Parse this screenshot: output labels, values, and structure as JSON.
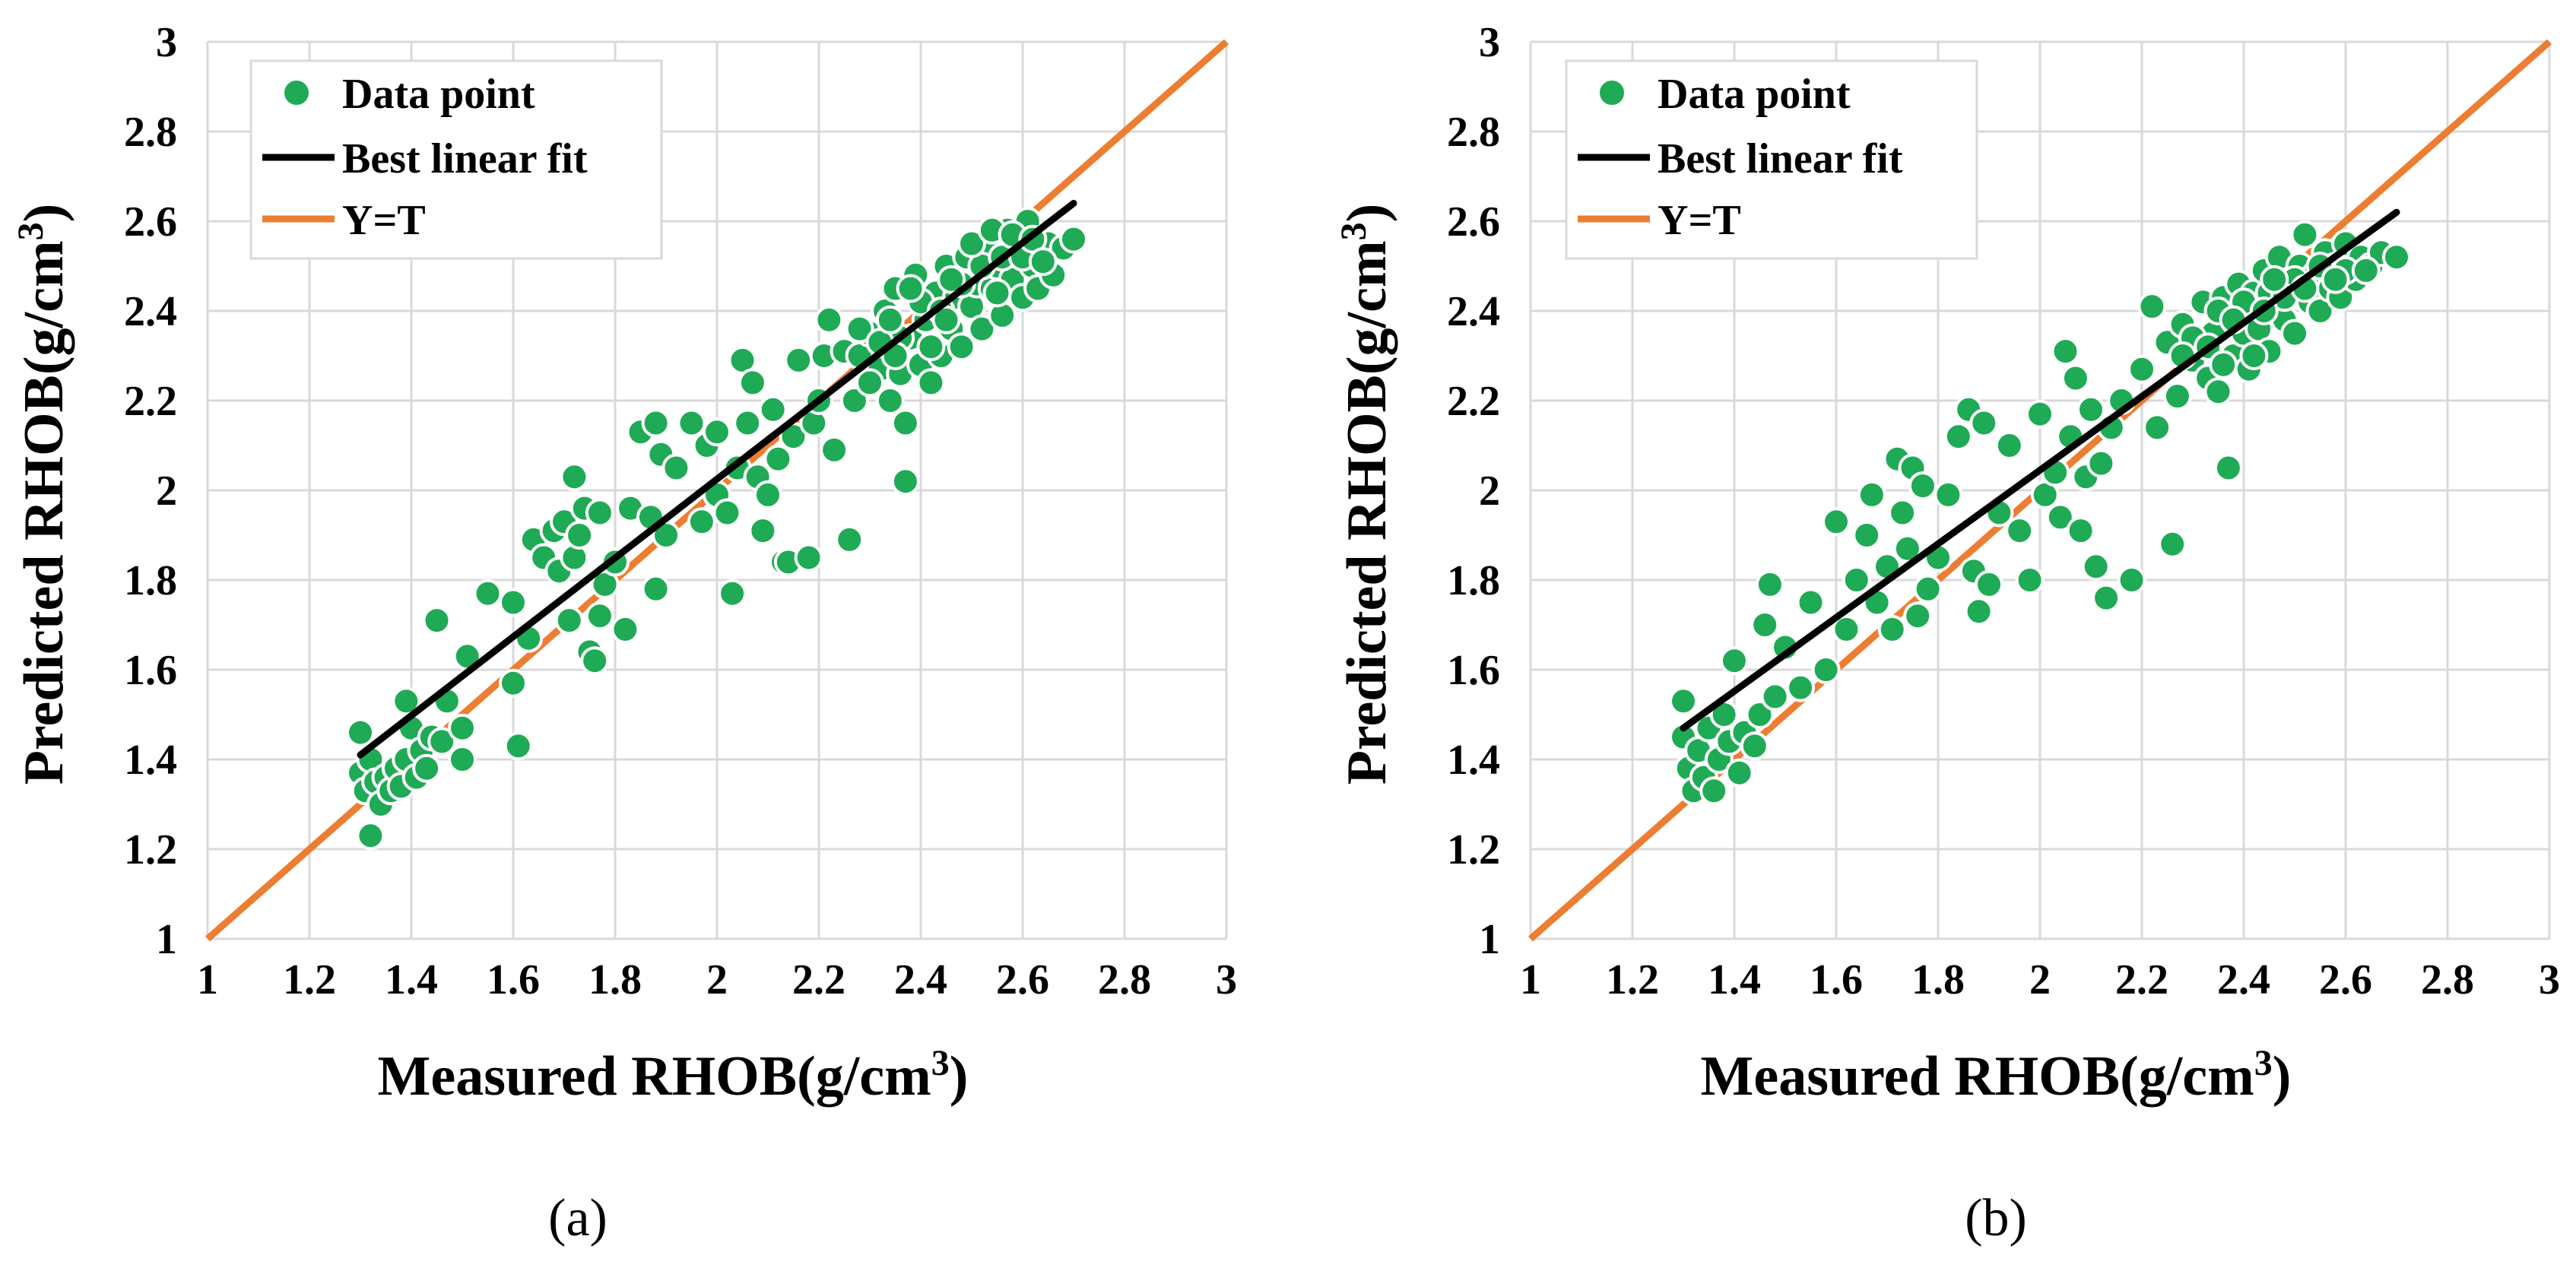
{
  "colors": {
    "data_point": "#1faa55",
    "best_fit": "#000000",
    "identity": "#ed7d31",
    "grid": "#d9d9d9",
    "marker_edge": "#ffffff"
  },
  "chart_data": [
    {
      "type": "scatter",
      "panel_label": "a",
      "caption": "(a)",
      "xlabel": "Measured RHOB(g/cm",
      "ylabel": "Predicted RHOB(g/cm",
      "unit_superscript": "3",
      "unit_close": ")",
      "xlim": [
        1,
        3
      ],
      "ylim": [
        1,
        3
      ],
      "xticks": [
        1,
        1.2,
        1.4,
        1.6,
        1.8,
        2,
        2.2,
        2.4,
        2.6,
        2.8,
        3
      ],
      "yticks": [
        1,
        1.2,
        1.4,
        1.6,
        1.8,
        2,
        2.2,
        2.4,
        2.6,
        2.8,
        3
      ],
      "xtick_labels": [
        "1",
        "1.2",
        "1.4",
        "1.6",
        "1.8",
        "2",
        "2.2",
        "2.4",
        "2.6",
        "2.8",
        "3"
      ],
      "ytick_labels": [
        "1",
        "1.2",
        "1.4",
        "1.6",
        "1.8",
        "2",
        "2.2",
        "2.4",
        "2.6",
        "2.8",
        "3"
      ],
      "grid": true,
      "legend_position": "top-left",
      "legend": [
        {
          "label": "Data point",
          "kind": "marker"
        },
        {
          "label": "Best linear fit",
          "kind": "line-black"
        },
        {
          "label": "Y=T",
          "kind": "line-orange"
        }
      ],
      "best_fit_line": {
        "x": [
          1.3,
          2.7
        ],
        "y": [
          1.41,
          2.64
        ]
      },
      "identity_line": {
        "x": [
          1,
          3
        ],
        "y": [
          1,
          3
        ]
      },
      "points": [
        [
          1.3,
          1.46
        ],
        [
          1.3,
          1.37
        ],
        [
          1.31,
          1.33
        ],
        [
          1.32,
          1.23
        ],
        [
          1.32,
          1.4
        ],
        [
          1.33,
          1.35
        ],
        [
          1.34,
          1.3
        ],
        [
          1.35,
          1.36
        ],
        [
          1.36,
          1.33
        ],
        [
          1.37,
          1.38
        ],
        [
          1.38,
          1.34
        ],
        [
          1.39,
          1.4
        ],
        [
          1.39,
          1.53
        ],
        [
          1.4,
          1.47
        ],
        [
          1.41,
          1.36
        ],
        [
          1.42,
          1.42
        ],
        [
          1.43,
          1.38
        ],
        [
          1.44,
          1.45
        ],
        [
          1.45,
          1.71
        ],
        [
          1.46,
          1.44
        ],
        [
          1.47,
          1.53
        ],
        [
          1.5,
          1.47
        ],
        [
          1.5,
          1.4
        ],
        [
          1.51,
          1.63
        ],
        [
          1.55,
          1.77
        ],
        [
          1.6,
          1.57
        ],
        [
          1.6,
          1.75
        ],
        [
          1.61,
          1.43
        ],
        [
          1.63,
          1.67
        ],
        [
          1.64,
          1.89
        ],
        [
          1.66,
          1.85
        ],
        [
          1.68,
          1.91
        ],
        [
          1.69,
          1.82
        ],
        [
          1.7,
          1.93
        ],
        [
          1.71,
          1.71
        ],
        [
          1.72,
          2.03
        ],
        [
          1.72,
          1.85
        ],
        [
          1.73,
          1.9
        ],
        [
          1.74,
          1.96
        ],
        [
          1.75,
          1.64
        ],
        [
          1.76,
          1.62
        ],
        [
          1.77,
          1.72
        ],
        [
          1.77,
          1.95
        ],
        [
          1.78,
          1.79
        ],
        [
          1.8,
          1.84
        ],
        [
          1.82,
          1.69
        ],
        [
          1.83,
          1.96
        ],
        [
          1.85,
          2.13
        ],
        [
          1.87,
          1.94
        ],
        [
          1.88,
          2.15
        ],
        [
          1.88,
          1.78
        ],
        [
          1.89,
          2.08
        ],
        [
          1.9,
          1.9
        ],
        [
          1.92,
          2.05
        ],
        [
          1.95,
          2.15
        ],
        [
          1.97,
          1.93
        ],
        [
          1.98,
          2.1
        ],
        [
          2.0,
          2.13
        ],
        [
          2.0,
          1.99
        ],
        [
          2.02,
          1.95
        ],
        [
          2.03,
          1.77
        ],
        [
          2.04,
          2.05
        ],
        [
          2.05,
          2.29
        ],
        [
          2.06,
          2.15
        ],
        [
          2.07,
          2.24
        ],
        [
          2.08,
          2.03
        ],
        [
          2.09,
          1.91
        ],
        [
          2.1,
          1.99
        ],
        [
          2.11,
          2.18
        ],
        [
          2.12,
          2.07
        ],
        [
          2.13,
          1.84
        ],
        [
          2.14,
          1.84
        ],
        [
          2.15,
          2.12
        ],
        [
          2.16,
          2.29
        ],
        [
          2.18,
          1.85
        ],
        [
          2.19,
          2.15
        ],
        [
          2.2,
          2.2
        ],
        [
          2.21,
          2.3
        ],
        [
          2.22,
          2.38
        ],
        [
          2.23,
          2.09
        ],
        [
          2.25,
          2.31
        ],
        [
          2.26,
          1.89
        ],
        [
          2.27,
          2.2
        ],
        [
          2.28,
          2.3
        ],
        [
          2.3,
          2.35
        ],
        [
          2.32,
          2.27
        ],
        [
          2.33,
          2.4
        ],
        [
          2.34,
          2.2
        ],
        [
          2.35,
          2.45
        ],
        [
          2.36,
          2.26
        ],
        [
          2.37,
          2.15
        ],
        [
          2.37,
          2.02
        ],
        [
          2.38,
          2.34
        ],
        [
          2.39,
          2.48
        ],
        [
          2.4,
          2.28
        ],
        [
          2.41,
          2.38
        ],
        [
          2.42,
          2.24
        ],
        [
          2.43,
          2.44
        ],
        [
          2.44,
          2.3
        ],
        [
          2.45,
          2.5
        ],
        [
          2.46,
          2.36
        ],
        [
          2.47,
          2.43
        ],
        [
          2.48,
          2.32
        ],
        [
          2.49,
          2.52
        ],
        [
          2.5,
          2.41
        ],
        [
          2.51,
          2.46
        ],
        [
          2.52,
          2.36
        ],
        [
          2.53,
          2.55
        ],
        [
          2.54,
          2.45
        ],
        [
          2.55,
          2.5
        ],
        [
          2.56,
          2.39
        ],
        [
          2.57,
          2.58
        ],
        [
          2.58,
          2.47
        ],
        [
          2.59,
          2.53
        ],
        [
          2.6,
          2.43
        ],
        [
          2.61,
          2.6
        ],
        [
          2.62,
          2.5
        ],
        [
          2.63,
          2.45
        ],
        [
          2.65,
          2.55
        ],
        [
          2.66,
          2.48
        ],
        [
          2.68,
          2.54
        ],
        [
          2.7,
          2.56
        ],
        [
          2.36,
          2.34
        ],
        [
          2.4,
          2.42
        ],
        [
          2.44,
          2.4
        ],
        [
          2.48,
          2.46
        ],
        [
          2.52,
          2.5
        ],
        [
          2.56,
          2.52
        ],
        [
          2.28,
          2.36
        ],
        [
          2.3,
          2.24
        ],
        [
          2.32,
          2.33
        ],
        [
          2.34,
          2.38
        ],
        [
          2.5,
          2.55
        ],
        [
          2.54,
          2.58
        ],
        [
          2.58,
          2.57
        ],
        [
          2.6,
          2.52
        ],
        [
          2.46,
          2.47
        ],
        [
          2.42,
          2.32
        ],
        [
          2.38,
          2.45
        ],
        [
          2.62,
          2.56
        ],
        [
          2.64,
          2.51
        ],
        [
          2.55,
          2.44
        ],
        [
          2.45,
          2.38
        ],
        [
          2.35,
          2.3
        ]
      ]
    },
    {
      "type": "scatter",
      "panel_label": "b",
      "caption": "(b)",
      "xlabel": "Measured RHOB(g/cm",
      "ylabel": "Predicted RHOB(g/cm",
      "unit_superscript": "3",
      "unit_close": ")",
      "xlim": [
        1,
        3
      ],
      "ylim": [
        1,
        3
      ],
      "xticks": [
        1,
        1.2,
        1.4,
        1.6,
        1.8,
        2,
        2.2,
        2.4,
        2.6,
        2.8,
        3
      ],
      "yticks": [
        1,
        1.2,
        1.4,
        1.6,
        1.8,
        2,
        2.2,
        2.4,
        2.6,
        2.8,
        3
      ],
      "xtick_labels": [
        "1",
        "1.2",
        "1.4",
        "1.6",
        "1.8",
        "2",
        "2.2",
        "2.4",
        "2.6",
        "2.8",
        "3"
      ],
      "ytick_labels": [
        "1",
        "1.2",
        "1.4",
        "1.6",
        "1.8",
        "2",
        "2.2",
        "2.4",
        "2.6",
        "2.8",
        "3"
      ],
      "grid": true,
      "legend_position": "top-left",
      "legend": [
        {
          "label": "Data point",
          "kind": "marker"
        },
        {
          "label": "Best linear fit",
          "kind": "line-black"
        },
        {
          "label": "Y=T",
          "kind": "line-orange"
        }
      ],
      "best_fit_line": {
        "x": [
          1.3,
          2.7
        ],
        "y": [
          1.47,
          2.62
        ]
      },
      "identity_line": {
        "x": [
          1,
          3
        ],
        "y": [
          1,
          3
        ]
      },
      "points": [
        [
          1.3,
          1.53
        ],
        [
          1.3,
          1.45
        ],
        [
          1.31,
          1.38
        ],
        [
          1.32,
          1.33
        ],
        [
          1.33,
          1.42
        ],
        [
          1.34,
          1.36
        ],
        [
          1.35,
          1.47
        ],
        [
          1.36,
          1.33
        ],
        [
          1.37,
          1.4
        ],
        [
          1.38,
          1.5
        ],
        [
          1.39,
          1.44
        ],
        [
          1.4,
          1.62
        ],
        [
          1.41,
          1.37
        ],
        [
          1.42,
          1.46
        ],
        [
          1.44,
          1.43
        ],
        [
          1.45,
          1.5
        ],
        [
          1.46,
          1.7
        ],
        [
          1.47,
          1.79
        ],
        [
          1.48,
          1.54
        ],
        [
          1.5,
          1.65
        ],
        [
          1.53,
          1.56
        ],
        [
          1.55,
          1.75
        ],
        [
          1.58,
          1.6
        ],
        [
          1.6,
          1.93
        ],
        [
          1.62,
          1.69
        ],
        [
          1.64,
          1.8
        ],
        [
          1.66,
          1.9
        ],
        [
          1.67,
          1.99
        ],
        [
          1.68,
          1.75
        ],
        [
          1.7,
          1.83
        ],
        [
          1.71,
          1.69
        ],
        [
          1.72,
          2.07
        ],
        [
          1.73,
          1.95
        ],
        [
          1.74,
          1.87
        ],
        [
          1.75,
          2.05
        ],
        [
          1.76,
          1.72
        ],
        [
          1.77,
          2.01
        ],
        [
          1.78,
          1.78
        ],
        [
          1.8,
          1.85
        ],
        [
          1.82,
          1.99
        ],
        [
          1.84,
          2.12
        ],
        [
          1.86,
          2.18
        ],
        [
          1.87,
          1.82
        ],
        [
          1.88,
          1.73
        ],
        [
          1.89,
          2.15
        ],
        [
          1.9,
          1.79
        ],
        [
          1.92,
          1.95
        ],
        [
          1.94,
          2.1
        ],
        [
          1.96,
          1.91
        ],
        [
          1.98,
          1.8
        ],
        [
          2.0,
          2.17
        ],
        [
          2.01,
          1.99
        ],
        [
          2.03,
          2.04
        ],
        [
          2.04,
          1.94
        ],
        [
          2.05,
          2.31
        ],
        [
          2.06,
          2.12
        ],
        [
          2.07,
          2.25
        ],
        [
          2.08,
          1.91
        ],
        [
          2.09,
          2.03
        ],
        [
          2.1,
          2.18
        ],
        [
          2.11,
          1.83
        ],
        [
          2.12,
          2.06
        ],
        [
          2.13,
          1.76
        ],
        [
          2.14,
          2.14
        ],
        [
          2.16,
          2.2
        ],
        [
          2.18,
          1.8
        ],
        [
          2.2,
          2.27
        ],
        [
          2.22,
          2.41
        ],
        [
          2.23,
          2.14
        ],
        [
          2.25,
          2.33
        ],
        [
          2.26,
          1.88
        ],
        [
          2.27,
          2.21
        ],
        [
          2.28,
          2.37
        ],
        [
          2.3,
          2.29
        ],
        [
          2.32,
          2.42
        ],
        [
          2.33,
          2.25
        ],
        [
          2.34,
          2.35
        ],
        [
          2.35,
          2.22
        ],
        [
          2.36,
          2.43
        ],
        [
          2.37,
          2.05
        ],
        [
          2.38,
          2.3
        ],
        [
          2.39,
          2.46
        ],
        [
          2.4,
          2.35
        ],
        [
          2.41,
          2.27
        ],
        [
          2.42,
          2.44
        ],
        [
          2.43,
          2.36
        ],
        [
          2.44,
          2.49
        ],
        [
          2.45,
          2.31
        ],
        [
          2.46,
          2.41
        ],
        [
          2.47,
          2.52
        ],
        [
          2.48,
          2.38
        ],
        [
          2.49,
          2.46
        ],
        [
          2.5,
          2.35
        ],
        [
          2.51,
          2.5
        ],
        [
          2.52,
          2.57
        ],
        [
          2.53,
          2.42
        ],
        [
          2.54,
          2.48
        ],
        [
          2.55,
          2.4
        ],
        [
          2.56,
          2.53
        ],
        [
          2.57,
          2.45
        ],
        [
          2.58,
          2.5
        ],
        [
          2.59,
          2.43
        ],
        [
          2.6,
          2.55
        ],
        [
          2.62,
          2.47
        ],
        [
          2.63,
          2.52
        ],
        [
          2.65,
          2.5
        ],
        [
          2.67,
          2.53
        ],
        [
          2.7,
          2.52
        ],
        [
          2.3,
          2.34
        ],
        [
          2.35,
          2.4
        ],
        [
          2.4,
          2.42
        ],
        [
          2.45,
          2.44
        ],
        [
          2.5,
          2.47
        ],
        [
          2.55,
          2.5
        ],
        [
          2.6,
          2.49
        ],
        [
          2.38,
          2.38
        ],
        [
          2.42,
          2.3
        ],
        [
          2.48,
          2.43
        ],
        [
          2.52,
          2.45
        ],
        [
          2.28,
          2.3
        ],
        [
          2.33,
          2.32
        ],
        [
          2.44,
          2.4
        ],
        [
          2.46,
          2.47
        ],
        [
          2.58,
          2.47
        ],
        [
          2.64,
          2.49
        ],
        [
          2.36,
          2.28
        ]
      ]
    }
  ]
}
